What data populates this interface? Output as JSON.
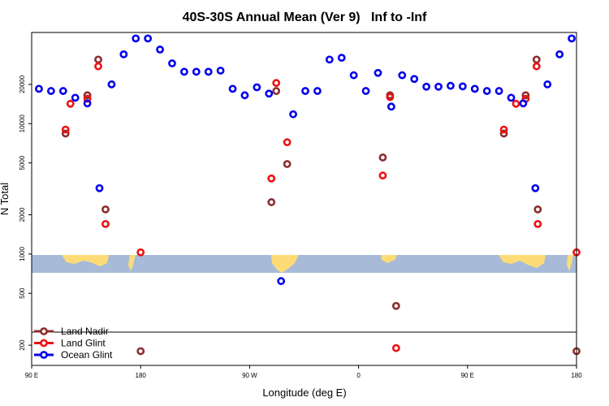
{
  "chart_data": {
    "type": "scatter",
    "title": "40S-30S Annual Mean (Ver 9)   Inf to -Inf",
    "xlabel": "Longitude (deg E)",
    "ylabel": "N Total",
    "xscale": "linear",
    "yscale": "log",
    "xlim": [
      90,
      540
    ],
    "ylim": [
      140,
      50000
    ],
    "x_ticks": [
      {
        "value": 90,
        "label": "90 E"
      },
      {
        "value": 180,
        "label": "180"
      },
      {
        "value": 270,
        "label": "90 W"
      },
      {
        "value": 360,
        "label": "0"
      },
      {
        "value": 450,
        "label": "90 E"
      },
      {
        "value": 540,
        "label": "180"
      }
    ],
    "y_ticks": [
      {
        "value": 200,
        "label": "200"
      },
      {
        "value": 500,
        "label": "500"
      },
      {
        "value": 1000,
        "label": "1000"
      },
      {
        "value": 2000,
        "label": "2000"
      },
      {
        "value": 5000,
        "label": "5000"
      },
      {
        "value": 10000,
        "label": "10000"
      },
      {
        "value": 20000,
        "label": "20000"
      }
    ],
    "map_band": {
      "lat_range": "40S-30S",
      "ocean_color": "#a7bbd9",
      "land_color": "#fddc78"
    },
    "legend_position": "bottom-left",
    "series": [
      {
        "name": "Land Nadir",
        "color": "#8b2e2e",
        "points": [
          [
            118,
            8400
          ],
          [
            136,
            16500
          ],
          [
            145,
            31000
          ],
          [
            151,
            2200
          ],
          [
            180,
            180
          ],
          [
            288,
            2500
          ],
          [
            292,
            17800
          ],
          [
            301,
            4900
          ],
          [
            380,
            5500
          ],
          [
            386,
            16500
          ],
          [
            391,
            400
          ],
          [
            480,
            8400
          ],
          [
            498,
            16500
          ],
          [
            507,
            31000
          ],
          [
            508,
            2200
          ],
          [
            540,
            180
          ]
        ]
      },
      {
        "name": "Land Glint",
        "color": "#ee1111",
        "points": [
          [
            118,
            9000
          ],
          [
            122,
            14200
          ],
          [
            136,
            15500
          ],
          [
            145,
            27500
          ],
          [
            151,
            1700
          ],
          [
            180,
            1030
          ],
          [
            288,
            3800
          ],
          [
            292,
            20500
          ],
          [
            301,
            7200
          ],
          [
            380,
            4000
          ],
          [
            386,
            16000
          ],
          [
            391,
            190
          ],
          [
            480,
            9000
          ],
          [
            490,
            14200
          ],
          [
            498,
            15500
          ],
          [
            507,
            27500
          ],
          [
            508,
            1700
          ],
          [
            540,
            1030
          ]
        ]
      },
      {
        "name": "Ocean Glint",
        "color": "#0000ee",
        "points": [
          [
            96,
            18500
          ],
          [
            106,
            17800
          ],
          [
            116,
            17800
          ],
          [
            126,
            15800
          ],
          [
            136,
            14300
          ],
          [
            146,
            3200
          ],
          [
            156,
            20000
          ],
          [
            166,
            34000
          ],
          [
            176,
            45000
          ],
          [
            186,
            45000
          ],
          [
            196,
            37000
          ],
          [
            206,
            29000
          ],
          [
            216,
            25000
          ],
          [
            226,
            25000
          ],
          [
            236,
            25000
          ],
          [
            246,
            25500
          ],
          [
            256,
            18500
          ],
          [
            266,
            16500
          ],
          [
            276,
            19000
          ],
          [
            286,
            17000
          ],
          [
            296,
            620
          ],
          [
            306,
            11800
          ],
          [
            316,
            17800
          ],
          [
            326,
            17800
          ],
          [
            336,
            31000
          ],
          [
            346,
            32000
          ],
          [
            356,
            23500
          ],
          [
            366,
            17800
          ],
          [
            376,
            24500
          ],
          [
            387,
            13500
          ],
          [
            396,
            23500
          ],
          [
            406,
            22000
          ],
          [
            416,
            19200
          ],
          [
            426,
            19200
          ],
          [
            436,
            19500
          ],
          [
            446,
            19300
          ],
          [
            456,
            18500
          ],
          [
            466,
            17800
          ],
          [
            476,
            17800
          ],
          [
            486,
            15800
          ],
          [
            496,
            14300
          ],
          [
            506,
            3200
          ],
          [
            516,
            20000
          ],
          [
            526,
            34000
          ],
          [
            536,
            45000
          ]
        ]
      }
    ]
  }
}
